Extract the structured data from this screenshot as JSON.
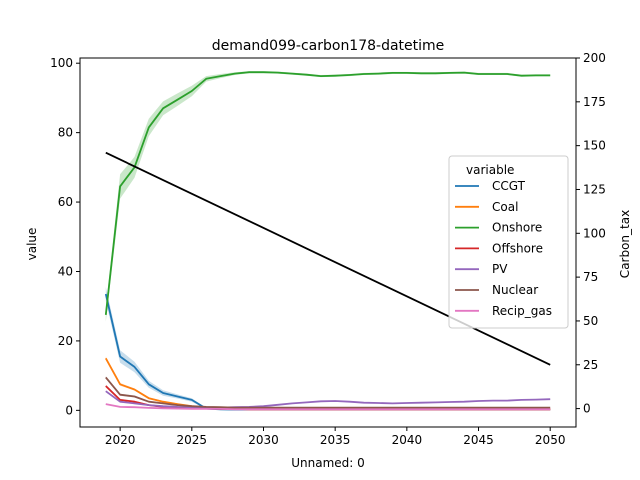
{
  "chart_data": {
    "type": "line",
    "title": "demand099-carbon178-datetime",
    "xlabel": "Unnamed: 0",
    "ylabel": "value",
    "y2label": "Carbon_tax",
    "xlim": [
      2017.2,
      2051.8
    ],
    "ylim": [
      -4.8,
      101.5
    ],
    "y2lim": [
      -10.5,
      200
    ],
    "xticks": [
      2020,
      2025,
      2030,
      2035,
      2040,
      2045,
      2050
    ],
    "yticks": [
      0,
      20,
      40,
      60,
      80,
      100
    ],
    "y2ticks": [
      0,
      25,
      50,
      75,
      100,
      125,
      150,
      175,
      200
    ],
    "grid": false,
    "legend": {
      "title": "variable",
      "position": "right"
    },
    "x": [
      2019,
      2020,
      2021,
      2022,
      2023,
      2024,
      2025,
      2026,
      2027,
      2028,
      2029,
      2030,
      2031,
      2032,
      2033,
      2034,
      2035,
      2036,
      2037,
      2038,
      2039,
      2040,
      2041,
      2042,
      2043,
      2044,
      2045,
      2046,
      2047,
      2048,
      2049,
      2050
    ],
    "series": [
      {
        "name": "CCGT",
        "color": "#1f77b4",
        "values": [
          33.5,
          15.5,
          12.5,
          7.5,
          5.0,
          4.0,
          3.0,
          0.5,
          0.3,
          0.2,
          0.2,
          0.2,
          0.2,
          0.2,
          0.2,
          0.2,
          0.2,
          0.2,
          0.2,
          0.2,
          0.2,
          0.2,
          0.2,
          0.2,
          0.2,
          0.2,
          0.2,
          0.2,
          0.2,
          0.2,
          0.2,
          0.2
        ],
        "band": [
          2.0,
          1.8,
          1.5,
          1.0,
          0.8,
          0.6,
          0.5,
          0.2,
          0.1,
          0.1,
          0.1,
          0.1,
          0.1,
          0.1,
          0.1,
          0.1,
          0.1,
          0.1,
          0.1,
          0.1,
          0.1,
          0.1,
          0.1,
          0.1,
          0.1,
          0.1,
          0.1,
          0.1,
          0.1,
          0.1,
          0.1,
          0.1
        ]
      },
      {
        "name": "Coal",
        "color": "#ff7f0e",
        "values": [
          15.0,
          7.5,
          6.0,
          3.5,
          2.5,
          1.8,
          1.2,
          0.8,
          0.5,
          0.4,
          0.3,
          0.3,
          0.3,
          0.3,
          0.3,
          0.3,
          0.3,
          0.3,
          0.3,
          0.3,
          0.3,
          0.3,
          0.3,
          0.3,
          0.3,
          0.3,
          0.3,
          0.3,
          0.3,
          0.3,
          0.3,
          0.3
        ],
        "band": [
          0.5,
          0.4,
          0.3,
          0.3,
          0.2,
          0.2,
          0.1,
          0.1,
          0.1,
          0.1,
          0.1,
          0.1,
          0.1,
          0.1,
          0.1,
          0.1,
          0.1,
          0.1,
          0.1,
          0.1,
          0.1,
          0.1,
          0.1,
          0.1,
          0.1,
          0.1,
          0.1,
          0.1,
          0.1,
          0.1,
          0.1,
          0.1
        ]
      },
      {
        "name": "Onshore",
        "color": "#2ca02c",
        "values": [
          27.5,
          64.5,
          70.0,
          81.5,
          87.0,
          89.5,
          92.0,
          95.5,
          96.3,
          97.0,
          97.4,
          97.4,
          97.3,
          97.0,
          96.7,
          96.3,
          96.4,
          96.6,
          96.9,
          97.0,
          97.2,
          97.2,
          97.1,
          97.1,
          97.2,
          97.3,
          96.9,
          96.9,
          96.9,
          96.4,
          96.5,
          96.5
        ],
        "band": [
          2.0,
          3.5,
          3.0,
          2.5,
          2.0,
          1.8,
          1.5,
          0.8,
          0.6,
          0.4,
          0.3,
          0.3,
          0.3,
          0.3,
          0.3,
          0.3,
          0.3,
          0.3,
          0.3,
          0.3,
          0.3,
          0.3,
          0.3,
          0.3,
          0.3,
          0.3,
          0.3,
          0.3,
          0.3,
          0.3,
          0.3,
          0.3
        ]
      },
      {
        "name": "Offshore",
        "color": "#d62728",
        "values": [
          7.0,
          3.0,
          2.5,
          1.5,
          1.0,
          0.8,
          0.6,
          0.5,
          0.4,
          0.4,
          0.3,
          0.3,
          0.3,
          0.3,
          0.3,
          0.3,
          0.3,
          0.3,
          0.3,
          0.3,
          0.3,
          0.3,
          0.3,
          0.3,
          0.3,
          0.3,
          0.3,
          0.3,
          0.3,
          0.3,
          0.3,
          0.3
        ],
        "band": [
          0.4,
          0.3,
          0.3,
          0.2,
          0.2,
          0.1,
          0.1,
          0.1,
          0.1,
          0.1,
          0.1,
          0.1,
          0.1,
          0.1,
          0.1,
          0.1,
          0.1,
          0.1,
          0.1,
          0.1,
          0.1,
          0.1,
          0.1,
          0.1,
          0.1,
          0.1,
          0.1,
          0.1,
          0.1,
          0.1,
          0.1,
          0.1
        ]
      },
      {
        "name": "PV",
        "color": "#9467bd",
        "values": [
          5.5,
          2.5,
          2.0,
          1.5,
          1.2,
          1.0,
          0.9,
          0.8,
          0.8,
          0.9,
          1.0,
          1.2,
          1.6,
          2.0,
          2.3,
          2.6,
          2.7,
          2.5,
          2.2,
          2.1,
          2.0,
          2.1,
          2.2,
          2.3,
          2.4,
          2.5,
          2.7,
          2.8,
          2.8,
          3.0,
          3.1,
          3.2
        ],
        "band": [
          0.3,
          0.2,
          0.2,
          0.2,
          0.1,
          0.1,
          0.1,
          0.1,
          0.1,
          0.1,
          0.1,
          0.1,
          0.1,
          0.1,
          0.1,
          0.1,
          0.1,
          0.1,
          0.1,
          0.1,
          0.1,
          0.1,
          0.1,
          0.1,
          0.1,
          0.1,
          0.1,
          0.1,
          0.1,
          0.1,
          0.1,
          0.1
        ]
      },
      {
        "name": "Nuclear",
        "color": "#8c564b",
        "values": [
          9.5,
          4.5,
          4.0,
          2.5,
          2.0,
          1.5,
          1.2,
          1.0,
          0.9,
          0.8,
          0.8,
          0.8,
          0.8,
          0.8,
          0.8,
          0.8,
          0.8,
          0.8,
          0.8,
          0.8,
          0.8,
          0.8,
          0.8,
          0.8,
          0.8,
          0.8,
          0.8,
          0.8,
          0.8,
          0.8,
          0.8,
          0.8
        ],
        "band": [
          0.4,
          0.3,
          0.3,
          0.2,
          0.2,
          0.1,
          0.1,
          0.1,
          0.1,
          0.1,
          0.1,
          0.1,
          0.1,
          0.1,
          0.1,
          0.1,
          0.1,
          0.1,
          0.1,
          0.1,
          0.1,
          0.1,
          0.1,
          0.1,
          0.1,
          0.1,
          0.1,
          0.1,
          0.1,
          0.1,
          0.1,
          0.1
        ]
      },
      {
        "name": "Recip_gas",
        "color": "#e377c2",
        "values": [
          1.8,
          1.0,
          0.9,
          0.7,
          0.6,
          0.5,
          0.4,
          0.4,
          0.4,
          0.3,
          0.3,
          0.3,
          0.3,
          0.3,
          0.3,
          0.3,
          0.3,
          0.3,
          0.3,
          0.3,
          0.3,
          0.3,
          0.3,
          0.3,
          0.3,
          0.3,
          0.3,
          0.3,
          0.3,
          0.3,
          0.3,
          0.3
        ],
        "band": [
          0.2,
          0.1,
          0.1,
          0.1,
          0.1,
          0.1,
          0.1,
          0.1,
          0.1,
          0.1,
          0.1,
          0.1,
          0.1,
          0.1,
          0.1,
          0.1,
          0.1,
          0.1,
          0.1,
          0.1,
          0.1,
          0.1,
          0.1,
          0.1,
          0.1,
          0.1,
          0.1,
          0.1,
          0.1,
          0.1,
          0.1,
          0.1
        ]
      }
    ],
    "secondary_series": {
      "color": "#000000",
      "axis": "right",
      "x": [
        2019,
        2050
      ],
      "values": [
        146,
        25
      ]
    }
  }
}
